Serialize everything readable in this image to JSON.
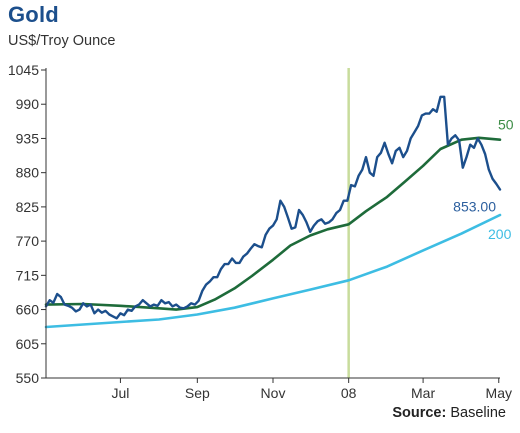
{
  "chart_data": {
    "type": "line",
    "title": "Gold",
    "subtitle": "US$/Troy Ounce",
    "source_label": "Source:",
    "source_value": "Baseline",
    "x_start": "2007-05-02",
    "x_end": "2008-05-02",
    "x_ticks": [
      {
        "label": "Jul",
        "date": "2007-07-01"
      },
      {
        "label": "Sep",
        "date": "2007-09-01"
      },
      {
        "label": "Nov",
        "date": "2007-11-01"
      },
      {
        "label": "08",
        "date": "2008-01-01"
      },
      {
        "label": "Mar",
        "date": "2008-03-01"
      },
      {
        "label": "May",
        "date": "2008-05-01"
      }
    ],
    "ylim": [
      550,
      1045
    ],
    "y_ticks": [
      550,
      605,
      660,
      715,
      770,
      825,
      880,
      935,
      990,
      1045
    ],
    "year_marker_date": "2008-01-01",
    "colors": {
      "price": "#1c4f8c",
      "ma50": "#1e6b3a",
      "ma200": "#3dbde3",
      "year_marker": "#c8dc9c",
      "axis": "#333333",
      "price_label": "#2c5f9e",
      "ma50_label": "#3c8c46",
      "ma200_label": "#3dbde3"
    },
    "series": [
      {
        "key": "price",
        "points": [
          [
            "2007-05-02",
            665
          ],
          [
            "2007-05-05",
            675
          ],
          [
            "2007-05-08",
            671
          ],
          [
            "2007-05-11",
            685
          ],
          [
            "2007-05-14",
            680
          ],
          [
            "2007-05-17",
            668
          ],
          [
            "2007-05-20",
            666
          ],
          [
            "2007-05-23",
            663
          ],
          [
            "2007-05-26",
            657
          ],
          [
            "2007-05-29",
            660
          ],
          [
            "2007-06-01",
            670
          ],
          [
            "2007-06-04",
            665
          ],
          [
            "2007-06-07",
            668
          ],
          [
            "2007-06-10",
            654
          ],
          [
            "2007-06-13",
            660
          ],
          [
            "2007-06-16",
            655
          ],
          [
            "2007-06-19",
            658
          ],
          [
            "2007-06-22",
            652
          ],
          [
            "2007-06-25",
            649
          ],
          [
            "2007-06-28",
            646
          ],
          [
            "2007-07-01",
            654
          ],
          [
            "2007-07-04",
            651
          ],
          [
            "2007-07-07",
            660
          ],
          [
            "2007-07-10",
            658
          ],
          [
            "2007-07-13",
            665
          ],
          [
            "2007-07-16",
            668
          ],
          [
            "2007-07-19",
            675
          ],
          [
            "2007-07-22",
            670
          ],
          [
            "2007-07-25",
            665
          ],
          [
            "2007-07-28",
            668
          ],
          [
            "2007-07-31",
            666
          ],
          [
            "2007-08-03",
            675
          ],
          [
            "2007-08-06",
            670
          ],
          [
            "2007-08-09",
            672
          ],
          [
            "2007-08-12",
            665
          ],
          [
            "2007-08-15",
            668
          ],
          [
            "2007-08-18",
            663
          ],
          [
            "2007-08-21",
            662
          ],
          [
            "2007-08-24",
            665
          ],
          [
            "2007-08-27",
            670
          ],
          [
            "2007-08-30",
            668
          ],
          [
            "2007-09-02",
            674
          ],
          [
            "2007-09-05",
            690
          ],
          [
            "2007-09-08",
            700
          ],
          [
            "2007-09-11",
            705
          ],
          [
            "2007-09-14",
            712
          ],
          [
            "2007-09-17",
            712
          ],
          [
            "2007-09-20",
            725
          ],
          [
            "2007-09-23",
            733
          ],
          [
            "2007-09-26",
            733
          ],
          [
            "2007-09-29",
            742
          ],
          [
            "2007-10-02",
            735
          ],
          [
            "2007-10-05",
            735
          ],
          [
            "2007-10-08",
            745
          ],
          [
            "2007-10-11",
            750
          ],
          [
            "2007-10-14",
            758
          ],
          [
            "2007-10-17",
            765
          ],
          [
            "2007-10-20",
            762
          ],
          [
            "2007-10-23",
            760
          ],
          [
            "2007-10-26",
            780
          ],
          [
            "2007-10-29",
            790
          ],
          [
            "2007-11-01",
            795
          ],
          [
            "2007-11-04",
            805
          ],
          [
            "2007-11-07",
            835
          ],
          [
            "2007-11-10",
            825
          ],
          [
            "2007-11-13",
            808
          ],
          [
            "2007-11-16",
            790
          ],
          [
            "2007-11-19",
            792
          ],
          [
            "2007-11-22",
            820
          ],
          [
            "2007-11-25",
            812
          ],
          [
            "2007-11-28",
            800
          ],
          [
            "2007-12-01",
            785
          ],
          [
            "2007-12-04",
            795
          ],
          [
            "2007-12-07",
            802
          ],
          [
            "2007-12-10",
            805
          ],
          [
            "2007-12-13",
            798
          ],
          [
            "2007-12-16",
            800
          ],
          [
            "2007-12-19",
            805
          ],
          [
            "2007-12-22",
            815
          ],
          [
            "2007-12-25",
            820
          ],
          [
            "2007-12-28",
            835
          ],
          [
            "2007-12-31",
            835
          ],
          [
            "2008-01-03",
            860
          ],
          [
            "2008-01-06",
            858
          ],
          [
            "2008-01-09",
            875
          ],
          [
            "2008-01-12",
            885
          ],
          [
            "2008-01-15",
            905
          ],
          [
            "2008-01-18",
            880
          ],
          [
            "2008-01-21",
            875
          ],
          [
            "2008-01-24",
            905
          ],
          [
            "2008-01-27",
            912
          ],
          [
            "2008-01-30",
            928
          ],
          [
            "2008-02-02",
            910
          ],
          [
            "2008-02-05",
            895
          ],
          [
            "2008-02-08",
            915
          ],
          [
            "2008-02-11",
            920
          ],
          [
            "2008-02-14",
            905
          ],
          [
            "2008-02-17",
            915
          ],
          [
            "2008-02-20",
            935
          ],
          [
            "2008-02-23",
            945
          ],
          [
            "2008-02-26",
            955
          ],
          [
            "2008-02-29",
            972
          ],
          [
            "2008-03-03",
            975
          ],
          [
            "2008-03-06",
            975
          ],
          [
            "2008-03-09",
            982
          ],
          [
            "2008-03-12",
            978
          ],
          [
            "2008-03-15",
            1002
          ],
          [
            "2008-03-18",
            1002
          ],
          [
            "2008-03-21",
            925
          ],
          [
            "2008-03-24",
            935
          ],
          [
            "2008-03-27",
            940
          ],
          [
            "2008-03-30",
            932
          ],
          [
            "2008-04-02",
            888
          ],
          [
            "2008-04-05",
            905
          ],
          [
            "2008-04-08",
            925
          ],
          [
            "2008-04-11",
            920
          ],
          [
            "2008-04-14",
            935
          ],
          [
            "2008-04-17",
            925
          ],
          [
            "2008-04-20",
            910
          ],
          [
            "2008-04-23",
            885
          ],
          [
            "2008-04-26",
            870
          ],
          [
            "2008-04-29",
            862
          ],
          [
            "2008-05-02",
            853
          ]
        ]
      },
      {
        "key": "ma50",
        "points": [
          [
            "2007-05-02",
            668
          ],
          [
            "2007-06-01",
            669
          ],
          [
            "2007-07-01",
            666
          ],
          [
            "2007-08-01",
            662
          ],
          [
            "2007-08-15",
            660
          ],
          [
            "2007-09-01",
            664
          ],
          [
            "2007-09-15",
            676
          ],
          [
            "2007-10-01",
            694
          ],
          [
            "2007-10-15",
            714
          ],
          [
            "2007-11-01",
            740
          ],
          [
            "2007-11-15",
            763
          ],
          [
            "2007-12-01",
            779
          ],
          [
            "2007-12-15",
            789
          ],
          [
            "2008-01-01",
            797
          ],
          [
            "2008-01-15",
            818
          ],
          [
            "2008-02-01",
            841
          ],
          [
            "2008-02-15",
            865
          ],
          [
            "2008-03-01",
            891
          ],
          [
            "2008-03-15",
            918
          ],
          [
            "2008-04-01",
            933
          ],
          [
            "2008-04-15",
            936
          ],
          [
            "2008-05-02",
            933
          ]
        ]
      },
      {
        "key": "ma200",
        "points": [
          [
            "2007-05-02",
            632
          ],
          [
            "2007-06-01",
            636
          ],
          [
            "2007-07-01",
            640
          ],
          [
            "2007-08-01",
            644
          ],
          [
            "2007-09-01",
            652
          ],
          [
            "2007-10-01",
            663
          ],
          [
            "2007-11-01",
            678
          ],
          [
            "2007-12-01",
            692
          ],
          [
            "2008-01-01",
            707
          ],
          [
            "2008-02-01",
            729
          ],
          [
            "2008-03-01",
            755
          ],
          [
            "2008-04-01",
            782
          ],
          [
            "2008-05-02",
            812
          ]
        ]
      }
    ],
    "labels": {
      "price_end": "853.00",
      "ma50": "50",
      "ma200": "200"
    }
  }
}
